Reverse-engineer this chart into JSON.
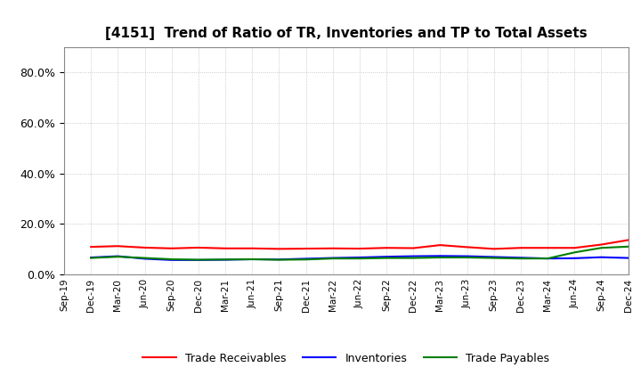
{
  "title": "[4151]  Trend of Ratio of TR, Inventories and TP to Total Assets",
  "x_labels": [
    "Sep-19",
    "Dec-19",
    "Mar-20",
    "Jun-20",
    "Sep-20",
    "Dec-20",
    "Mar-21",
    "Jun-21",
    "Sep-21",
    "Dec-21",
    "Mar-22",
    "Jun-22",
    "Sep-22",
    "Dec-22",
    "Mar-23",
    "Jun-23",
    "Sep-23",
    "Dec-23",
    "Mar-24",
    "Jun-24",
    "Sep-24",
    "Dec-24"
  ],
  "trade_receivables": [
    null,
    0.109,
    0.112,
    0.106,
    0.103,
    0.106,
    0.103,
    0.103,
    0.101,
    0.102,
    0.103,
    0.102,
    0.105,
    0.104,
    0.116,
    0.108,
    0.101,
    0.105,
    0.105,
    0.105,
    0.118,
    0.136
  ],
  "inventories": [
    null,
    0.067,
    0.072,
    0.062,
    0.057,
    0.057,
    0.058,
    0.06,
    0.059,
    0.062,
    0.065,
    0.067,
    0.07,
    0.072,
    0.073,
    0.072,
    0.069,
    0.066,
    0.063,
    0.064,
    0.068,
    0.065
  ],
  "trade_payables": [
    null,
    0.065,
    0.07,
    0.065,
    0.06,
    0.058,
    0.059,
    0.06,
    0.058,
    0.059,
    0.063,
    0.063,
    0.065,
    0.065,
    0.067,
    0.067,
    0.065,
    0.063,
    0.063,
    0.087,
    0.105,
    0.11
  ],
  "tr_color": "#FF0000",
  "inv_color": "#0000FF",
  "tp_color": "#008000",
  "ylim": [
    0.0,
    0.9
  ],
  "yticks": [
    0.0,
    0.2,
    0.4,
    0.6,
    0.8
  ],
  "legend_labels": [
    "Trade Receivables",
    "Inventories",
    "Trade Payables"
  ],
  "bg_color": "#FFFFFF",
  "grid_color": "#AAAAAA"
}
